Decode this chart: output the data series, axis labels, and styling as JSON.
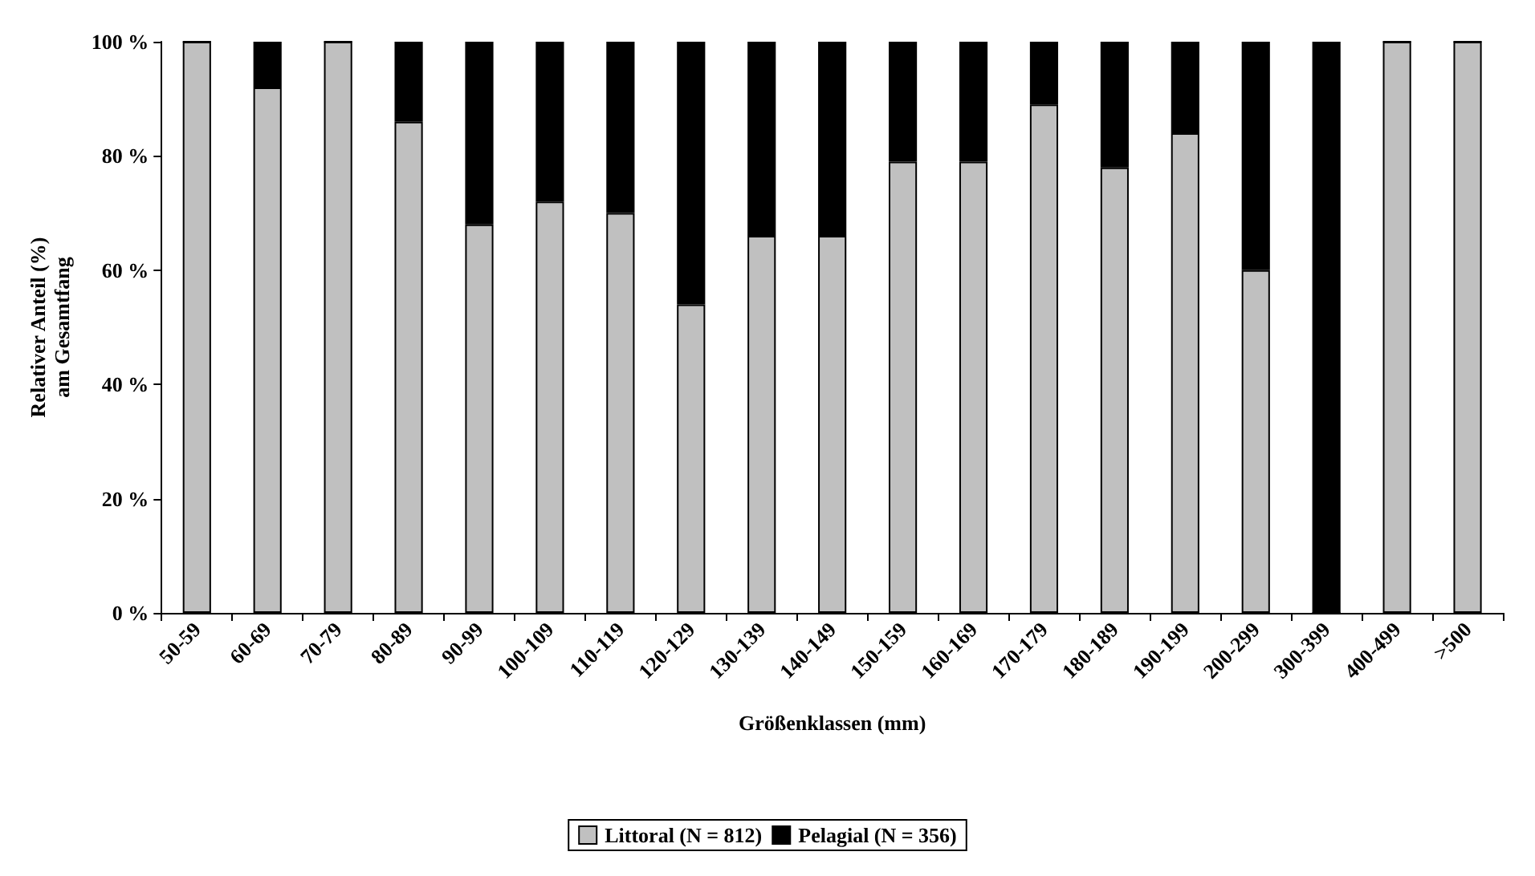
{
  "chart_data": {
    "type": "bar",
    "stacked": true,
    "xlabel": "Größenklassen (mm)",
    "ylabel": "Relativer Anteil (%)\nam Gesamtfang",
    "categories": [
      "50-59",
      "60-69",
      "70-79",
      "80-89",
      "90-99",
      "100-109",
      "110-119",
      "120-129",
      "130-139",
      "140-149",
      "150-159",
      "160-169",
      "170-179",
      "180-189",
      "190-199",
      "200-299",
      "300-399",
      "400-499",
      ">500"
    ],
    "series": [
      {
        "name": "Littoral (N = 812)",
        "color": "#c0c0c0",
        "values": [
          100,
          92,
          100,
          86,
          68,
          72,
          70,
          54,
          66,
          66,
          79,
          79,
          89,
          78,
          84,
          60,
          0,
          100,
          100
        ]
      },
      {
        "name": "Pelagial (N = 356)",
        "color": "#000000",
        "values": [
          0,
          8,
          0,
          14,
          32,
          28,
          30,
          46,
          34,
          34,
          21,
          21,
          11,
          22,
          16,
          40,
          100,
          0,
          0
        ]
      }
    ],
    "ylim": [
      0,
      100
    ],
    "yticks": [
      {
        "value": 0,
        "label": "0 %"
      },
      {
        "value": 20,
        "label": "20 %"
      },
      {
        "value": 40,
        "label": "40 %"
      },
      {
        "value": 60,
        "label": "60 %"
      },
      {
        "value": 80,
        "label": "80 %"
      },
      {
        "value": 100,
        "label": "100 %"
      }
    ],
    "grid": false,
    "legend": "bottom"
  }
}
